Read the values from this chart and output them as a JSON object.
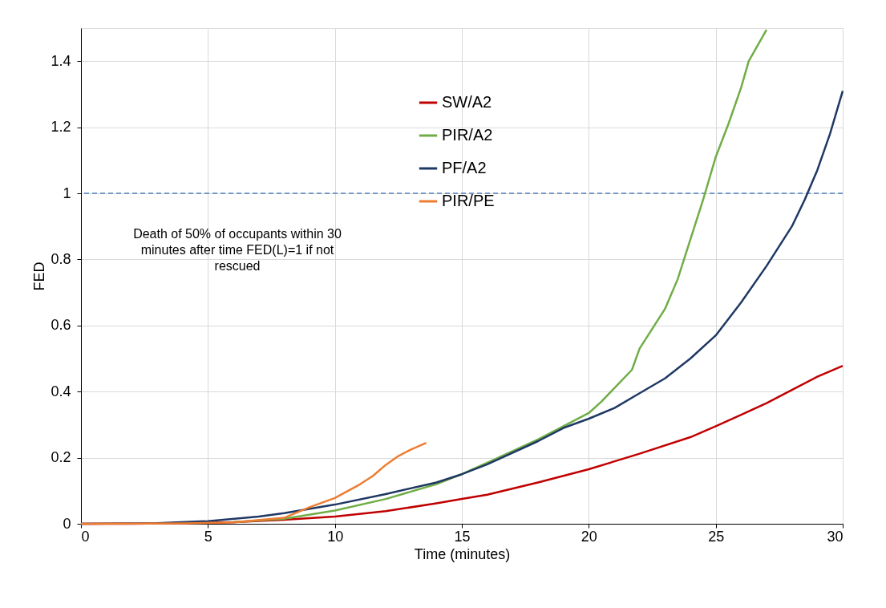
{
  "chart_data": {
    "type": "line",
    "xlabel": "Time (minutes)",
    "ylabel": "FED",
    "xlim": [
      0,
      30
    ],
    "xticks": [
      0,
      5,
      10,
      15,
      20,
      25,
      30
    ],
    "ylim": [
      0,
      1.5
    ],
    "yticks": [
      0,
      0.2,
      0.4,
      0.6,
      0.8,
      1,
      1.2,
      1.4
    ],
    "grid": true,
    "legend": "top",
    "marker": "none",
    "line_style": "solid",
    "series": [
      {
        "name": "SW/A2",
        "color": "#c00000",
        "x": [
          0,
          2,
          4,
          6,
          8,
          10,
          12,
          14,
          15,
          16,
          18,
          20,
          22,
          24,
          25,
          26,
          27,
          28,
          29,
          30
        ],
        "values": [
          0,
          0,
          0.002,
          0.005,
          0.012,
          0.022,
          0.038,
          0.062,
          0.075,
          0.088,
          0.125,
          0.165,
          0.212,
          0.262,
          0.295,
          0.33,
          0.365,
          0.405,
          0.445,
          0.478
        ]
      },
      {
        "name": "PIR/A2",
        "color": "#70ad47",
        "x": [
          6,
          8,
          10,
          12,
          14,
          15,
          16,
          18,
          20,
          20.5,
          21,
          21.7,
          22,
          22.5,
          23,
          23.5,
          24,
          24.5,
          25,
          25.5,
          26,
          26.3,
          27
        ],
        "values": [
          0.005,
          0.015,
          0.04,
          0.075,
          0.12,
          0.15,
          0.185,
          0.255,
          0.335,
          0.37,
          0.41,
          0.466,
          0.53,
          0.59,
          0.65,
          0.74,
          0.86,
          0.98,
          1.11,
          1.21,
          1.32,
          1.4,
          1.495
        ]
      },
      {
        "name": "PF/A2",
        "color": "#1f3864",
        "x": [
          0,
          3,
          5,
          7,
          8,
          10,
          12,
          14,
          15,
          16,
          18,
          19,
          20,
          21,
          22,
          23,
          24,
          25,
          26,
          27,
          28,
          28.5,
          29,
          29.5,
          30
        ],
        "values": [
          0,
          0.002,
          0.008,
          0.022,
          0.032,
          0.058,
          0.09,
          0.125,
          0.15,
          0.18,
          0.25,
          0.29,
          0.318,
          0.35,
          0.395,
          0.44,
          0.5,
          0.57,
          0.67,
          0.78,
          0.9,
          0.98,
          1.07,
          1.18,
          1.31
        ]
      },
      {
        "name": "PIR/PE",
        "color": "#ed7d31",
        "x": [
          0,
          4,
          6,
          8,
          9,
          10,
          11,
          11.5,
          12,
          12.5,
          13,
          13.6
        ],
        "values": [
          0,
          0.001,
          0.004,
          0.018,
          0.05,
          0.078,
          0.12,
          0.145,
          0.178,
          0.205,
          0.225,
          0.245
        ]
      }
    ],
    "ref_lines": [
      {
        "axis": "y",
        "value": 1,
        "color": "#4f81bd",
        "line_style": "dashed"
      }
    ],
    "annotations": [
      "Death of 50% of occupants within 30 minutes after time FED(L)=1 if not rescued"
    ]
  }
}
